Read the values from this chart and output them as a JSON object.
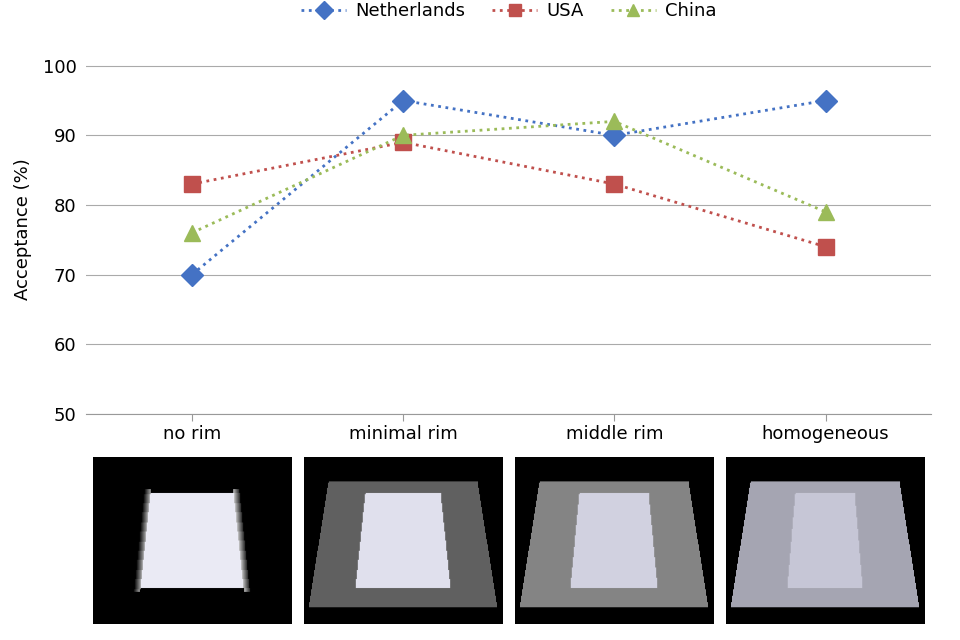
{
  "categories": [
    "no rim",
    "minimal rim",
    "middle rim",
    "homogeneous"
  ],
  "netherlands": [
    70,
    95,
    90,
    95
  ],
  "usa": [
    83,
    89,
    83,
    74
  ],
  "china": [
    76,
    90,
    92,
    79
  ],
  "netherlands_color": "#4472C4",
  "usa_color": "#C0504D",
  "china_color": "#9BBB59",
  "ylabel": "Acceptance (%)",
  "ylim": [
    50,
    103
  ],
  "yticks": [
    50,
    60,
    70,
    80,
    90,
    100
  ],
  "legend_labels": [
    "Netherlands",
    "USA",
    "China"
  ],
  "background_color": "#FFFFFF",
  "grid_color": "#AAAAAA"
}
